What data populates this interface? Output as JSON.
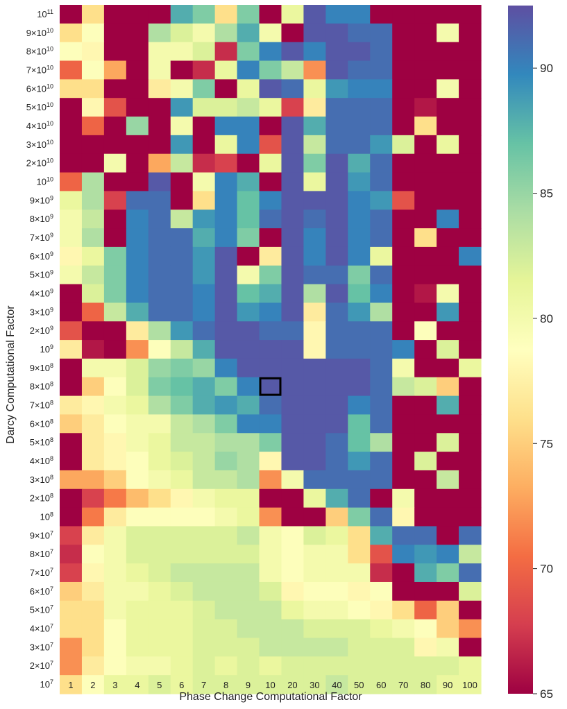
{
  "chart_data": {
    "type": "heatmap",
    "title": "",
    "xlabel": "Phase Change Computational Factor",
    "ylabel": "Darcy Computational Factor",
    "x_categories": [
      "1",
      "2",
      "3",
      "4",
      "5",
      "6",
      "7",
      "8",
      "9",
      "10",
      "20",
      "30",
      "40",
      "50",
      "60",
      "70",
      "80",
      "90",
      "100"
    ],
    "y_categories": [
      {
        "base": "10",
        "exp": "11"
      },
      {
        "coef": "9",
        "base": "10",
        "exp": "10"
      },
      {
        "coef": "8",
        "base": "10",
        "exp": "10"
      },
      {
        "coef": "7",
        "base": "10",
        "exp": "10"
      },
      {
        "coef": "6",
        "base": "10",
        "exp": "10"
      },
      {
        "coef": "5",
        "base": "10",
        "exp": "10"
      },
      {
        "coef": "4",
        "base": "10",
        "exp": "10"
      },
      {
        "coef": "3",
        "base": "10",
        "exp": "10"
      },
      {
        "coef": "2",
        "base": "10",
        "exp": "10"
      },
      {
        "base": "10",
        "exp": "10"
      },
      {
        "coef": "9",
        "base": "10",
        "exp": "9"
      },
      {
        "coef": "8",
        "base": "10",
        "exp": "9"
      },
      {
        "coef": "7",
        "base": "10",
        "exp": "9"
      },
      {
        "coef": "6",
        "base": "10",
        "exp": "9"
      },
      {
        "coef": "5",
        "base": "10",
        "exp": "9"
      },
      {
        "coef": "4",
        "base": "10",
        "exp": "9"
      },
      {
        "coef": "3",
        "base": "10",
        "exp": "9"
      },
      {
        "coef": "2",
        "base": "10",
        "exp": "9"
      },
      {
        "base": "10",
        "exp": "9"
      },
      {
        "coef": "9",
        "base": "10",
        "exp": "8"
      },
      {
        "coef": "8",
        "base": "10",
        "exp": "8"
      },
      {
        "coef": "7",
        "base": "10",
        "exp": "8"
      },
      {
        "coef": "6",
        "base": "10",
        "exp": "8"
      },
      {
        "coef": "5",
        "base": "10",
        "exp": "8"
      },
      {
        "coef": "4",
        "base": "10",
        "exp": "8"
      },
      {
        "coef": "3",
        "base": "10",
        "exp": "8"
      },
      {
        "coef": "2",
        "base": "10",
        "exp": "8"
      },
      {
        "base": "10",
        "exp": "8"
      },
      {
        "coef": "9",
        "base": "10",
        "exp": "7"
      },
      {
        "coef": "8",
        "base": "10",
        "exp": "7"
      },
      {
        "coef": "7",
        "base": "10",
        "exp": "7"
      },
      {
        "coef": "6",
        "base": "10",
        "exp": "7"
      },
      {
        "coef": "5",
        "base": "10",
        "exp": "7"
      },
      {
        "coef": "4",
        "base": "10",
        "exp": "7"
      },
      {
        "coef": "3",
        "base": "10",
        "exp": "7"
      },
      {
        "coef": "2",
        "base": "10",
        "exp": "7"
      },
      {
        "base": "10",
        "exp": "7"
      }
    ],
    "values": [
      [
        65,
        76,
        65,
        65,
        65,
        88,
        86,
        76,
        86,
        65,
        81,
        92,
        90,
        90,
        65,
        65,
        65,
        65,
        65
      ],
      [
        76,
        79,
        65,
        65,
        84,
        82,
        80,
        84,
        88,
        80,
        65,
        92,
        92,
        91,
        91,
        65,
        65,
        80,
        65
      ],
      [
        79,
        78,
        65,
        65,
        80,
        80,
        82,
        67,
        86,
        90,
        92,
        90,
        92,
        92,
        91,
        65,
        65,
        65,
        65
      ],
      [
        70,
        79,
        73,
        65,
        80,
        65,
        67,
        81,
        90,
        86,
        83,
        72,
        92,
        91,
        91,
        65,
        65,
        65,
        65
      ],
      [
        76,
        76,
        65,
        65,
        77,
        80,
        86,
        65,
        81,
        92,
        91,
        81,
        89,
        90,
        90,
        65,
        65,
        80,
        65
      ],
      [
        65,
        78,
        69,
        65,
        65,
        89,
        82,
        82,
        83,
        81,
        68,
        77,
        91,
        91,
        91,
        65,
        66,
        65,
        65
      ],
      [
        65,
        70,
        65,
        85,
        65,
        80,
        65,
        90,
        90,
        65,
        92,
        88,
        91,
        91,
        91,
        65,
        76,
        65,
        65
      ],
      [
        65,
        65,
        65,
        65,
        65,
        89,
        65,
        81,
        90,
        69,
        92,
        83,
        91,
        91,
        89,
        82,
        65,
        81,
        65
      ],
      [
        65,
        65,
        80,
        65,
        73,
        83,
        67,
        68,
        65,
        81,
        92,
        86,
        92,
        88,
        91,
        65,
        65,
        65,
        65
      ],
      [
        70,
        84,
        65,
        65,
        92,
        65,
        80,
        90,
        88,
        65,
        92,
        81,
        92,
        89,
        91,
        65,
        65,
        65,
        65
      ],
      [
        81,
        84,
        68,
        91,
        91,
        65,
        76,
        90,
        87,
        90,
        92,
        92,
        92,
        90,
        89,
        69,
        65,
        65,
        65
      ],
      [
        80,
        83,
        65,
        90,
        91,
        83,
        89,
        90,
        87,
        91,
        92,
        91,
        92,
        90,
        91,
        65,
        65,
        90,
        65
      ],
      [
        80,
        84,
        65,
        90,
        91,
        91,
        88,
        90,
        86,
        65,
        92,
        90,
        92,
        90,
        91,
        65,
        76,
        65,
        65
      ],
      [
        78,
        81,
        86,
        90,
        91,
        91,
        89,
        92,
        65,
        77,
        92,
        90,
        92,
        90,
        81,
        65,
        65,
        65,
        90
      ],
      [
        80,
        83,
        86,
        90,
        91,
        91,
        89,
        92,
        80,
        86,
        92,
        91,
        91,
        86,
        91,
        65,
        65,
        65,
        65
      ],
      [
        65,
        82,
        86,
        90,
        91,
        91,
        90,
        92,
        87,
        88,
        92,
        84,
        92,
        87,
        90,
        65,
        66,
        80,
        65
      ],
      [
        65,
        70,
        83,
        88,
        91,
        91,
        90,
        92,
        89,
        90,
        92,
        77,
        91,
        89,
        84,
        65,
        65,
        89,
        65
      ],
      [
        69,
        65,
        65,
        77,
        84,
        89,
        91,
        92,
        92,
        91,
        91,
        78,
        91,
        91,
        91,
        65,
        79,
        65,
        65
      ],
      [
        77,
        66,
        65,
        72,
        79,
        83,
        88,
        92,
        92,
        92,
        92,
        78,
        91,
        91,
        91,
        90,
        65,
        82,
        65
      ],
      [
        65,
        80,
        80,
        82,
        85,
        86,
        85,
        90,
        92,
        92,
        92,
        92,
        92,
        92,
        91,
        80,
        65,
        65,
        81
      ],
      [
        65,
        75,
        79,
        82,
        86,
        87,
        88,
        86,
        90,
        92,
        92,
        92,
        92,
        92,
        91,
        83,
        82,
        75,
        65
      ],
      [
        77,
        78,
        80,
        81,
        84,
        86,
        88,
        89,
        88,
        91,
        92,
        92,
        92,
        90,
        91,
        65,
        65,
        88,
        65
      ],
      [
        75,
        77,
        79,
        80,
        80,
        83,
        84,
        86,
        90,
        90,
        92,
        92,
        92,
        87,
        91,
        65,
        65,
        65,
        65
      ],
      [
        65,
        77,
        78,
        80,
        81,
        83,
        83,
        84,
        84,
        86,
        92,
        92,
        91,
        87,
        84,
        65,
        65,
        82,
        65
      ],
      [
        65,
        77,
        78,
        79,
        81,
        82,
        83,
        85,
        84,
        78,
        92,
        92,
        91,
        89,
        91,
        65,
        82,
        65,
        65
      ],
      [
        73,
        73,
        75,
        79,
        80,
        81,
        83,
        83,
        84,
        72,
        80,
        91,
        91,
        91,
        91,
        65,
        65,
        83,
        65
      ],
      [
        65,
        68,
        71,
        74,
        76,
        78,
        80,
        81,
        81,
        65,
        65,
        81,
        88,
        91,
        65,
        80,
        65,
        65,
        65
      ],
      [
        65,
        71,
        77,
        79,
        79,
        79,
        79,
        80,
        81,
        72,
        65,
        65,
        75,
        86,
        91,
        78,
        65,
        65,
        65
      ],
      [
        68,
        77,
        80,
        82,
        82,
        82,
        82,
        82,
        83,
        80,
        79,
        82,
        81,
        76,
        88,
        91,
        91,
        65,
        91
      ],
      [
        67,
        79,
        80,
        82,
        82,
        82,
        82,
        82,
        82,
        80,
        79,
        80,
        80,
        76,
        69,
        90,
        89,
        90,
        83
      ],
      [
        68,
        78,
        80,
        81,
        82,
        83,
        83,
        83,
        83,
        80,
        79,
        80,
        80,
        80,
        67,
        65,
        88,
        86,
        91
      ],
      [
        75,
        77,
        80,
        80,
        81,
        82,
        83,
        83,
        83,
        82,
        78,
        79,
        79,
        78,
        79,
        65,
        65,
        65,
        82
      ],
      [
        76,
        76,
        80,
        81,
        81,
        81,
        82,
        83,
        83,
        83,
        81,
        80,
        80,
        79,
        78,
        76,
        70,
        75,
        65
      ],
      [
        76,
        76,
        79,
        81,
        81,
        81,
        82,
        82,
        83,
        83,
        83,
        82,
        82,
        82,
        81,
        80,
        79,
        75,
        72
      ],
      [
        72,
        76,
        79,
        81,
        81,
        81,
        82,
        82,
        82,
        83,
        83,
        83,
        83,
        82,
        82,
        82,
        78,
        80,
        65
      ],
      [
        72,
        77,
        79,
        80,
        80,
        81,
        82,
        81,
        82,
        81,
        82,
        82,
        82,
        82,
        82,
        82,
        82,
        82,
        81
      ],
      [
        76,
        79,
        81,
        81,
        82,
        81,
        82,
        82,
        82,
        82,
        82,
        82,
        83,
        82,
        82,
        82,
        82,
        81,
        81
      ]
    ],
    "highlight_cell": {
      "x": "10",
      "y": {
        "coef": "8",
        "base": "10",
        "exp": "8"
      }
    },
    "colorbar": {
      "min": 65,
      "max": 92.5,
      "ticks": [
        "65",
        "70",
        "75",
        "80",
        "85",
        "90"
      ],
      "colormap": "Spectral"
    },
    "grid": false
  }
}
